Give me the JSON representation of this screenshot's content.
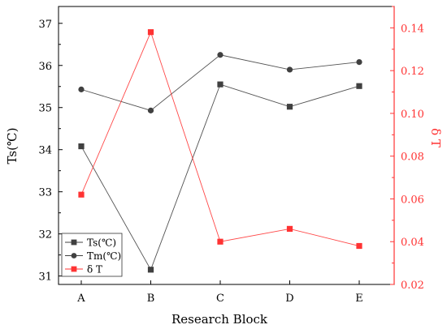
{
  "chart_data": {
    "type": "line",
    "categories": [
      "A",
      "B",
      "C",
      "D",
      "E"
    ],
    "xlabel": "Research Block",
    "ylabel_left": "Ts(℃)",
    "ylabel_right": "δ T",
    "ylim_left": [
      30.8,
      37.4
    ],
    "ylim_right": [
      0.02,
      0.15
    ],
    "yticks_left": [
      31,
      32,
      33,
      34,
      35,
      36,
      37
    ],
    "yticks_right": [
      0.02,
      0.04,
      0.06,
      0.08,
      0.1,
      0.12,
      0.14
    ],
    "ytick_labels_right": [
      "0.02",
      "0.04",
      "0.06",
      "0.08",
      "0.10",
      "0.12",
      "0.14"
    ],
    "grid": false,
    "legend_position": "bottom-left",
    "series": [
      {
        "name": "Ts(℃)",
        "axis": "left",
        "marker": "square",
        "color": "#404040",
        "values": [
          34.08,
          31.15,
          35.55,
          35.02,
          35.51
        ]
      },
      {
        "name": "Tm(℃)",
        "axis": "left",
        "marker": "circle",
        "color": "#404040",
        "values": [
          35.43,
          34.93,
          36.25,
          35.9,
          36.08
        ]
      },
      {
        "name": "δ T",
        "axis": "right",
        "marker": "square",
        "color": "#ff3333",
        "values": [
          0.062,
          0.138,
          0.04,
          0.046,
          0.038
        ]
      }
    ],
    "axis_colors": {
      "left": "#000000",
      "right": "#ff3333"
    }
  }
}
